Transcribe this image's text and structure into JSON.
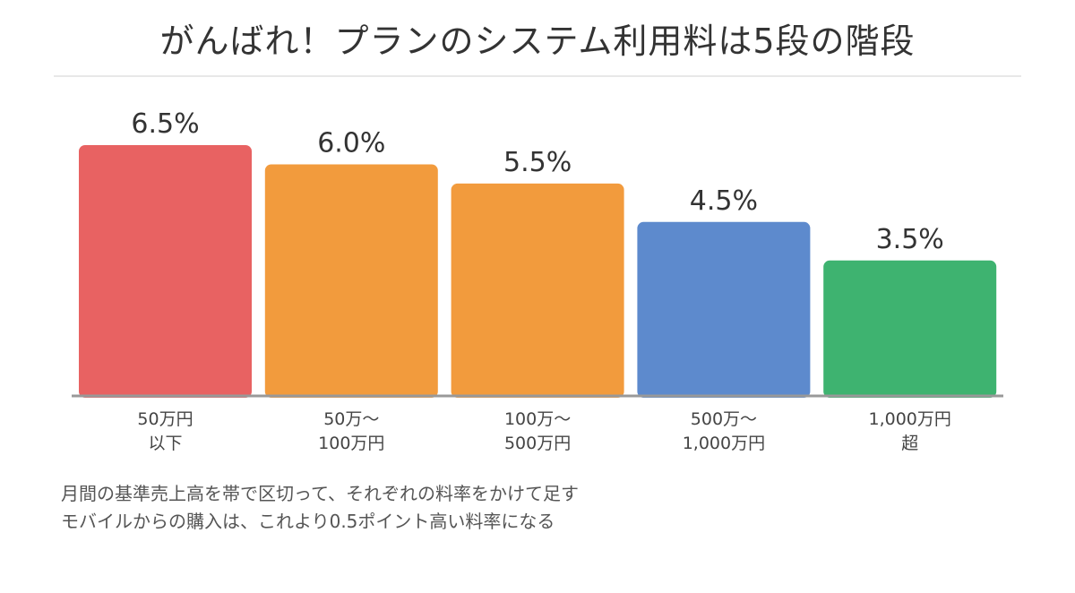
{
  "title": "がんばれ！プランのシステム利用料は5段の階段",
  "notes": [
    "月間の基準売上高を帯で区切って、それぞれの料率をかけて足す",
    "モバイルからの購入は、これより0.5ポイント高い料率になる"
  ],
  "chart_data": {
    "type": "bar",
    "title": "がんばれ！プランのシステム利用料は5段の階段",
    "xlabel": "",
    "ylabel": "",
    "ylim": [
      0,
      6.5
    ],
    "grid": false,
    "legend": "none",
    "unit": "%",
    "categories": [
      [
        "50万円",
        "以下"
      ],
      [
        "50万～",
        "100万円"
      ],
      [
        "100万～",
        "500万円"
      ],
      [
        "500万～",
        "1,000万円"
      ],
      [
        "1,000万円",
        "超"
      ]
    ],
    "values": [
      6.5,
      6.0,
      5.5,
      4.5,
      3.5
    ],
    "data_labels": [
      "6.5%",
      "6.0%",
      "5.5%",
      "4.5%",
      "3.5%"
    ],
    "colors": [
      "#e86262",
      "#f29b3d",
      "#f29b3d",
      "#5d8acd",
      "#3eb370"
    ],
    "baseline_color": "#999999"
  }
}
